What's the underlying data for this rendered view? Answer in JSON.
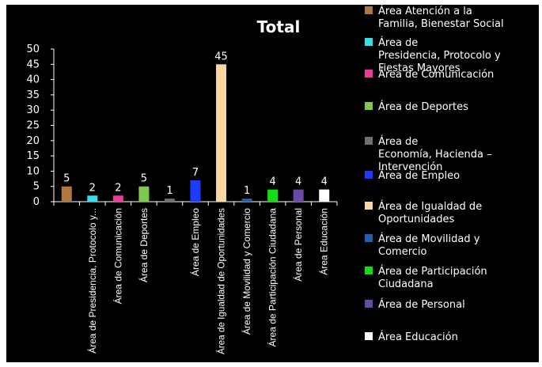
{
  "chart_data": {
    "type": "bar",
    "title": "Total",
    "xlabel": "",
    "ylabel": "",
    "ylim": [
      0,
      50
    ],
    "yticks": [
      0,
      5,
      10,
      15,
      20,
      25,
      30,
      35,
      40,
      45,
      50
    ],
    "grid": false,
    "legend_position": "right",
    "categories": [
      {
        "label": "",
        "value": 5,
        "color": "#b07840"
      },
      {
        "label": "Área de  Presidencia, Protocolo y...",
        "value": 2,
        "color": "#33e0ee"
      },
      {
        "label": "Área de Comunicación",
        "value": 2,
        "color": "#ee3a9a"
      },
      {
        "label": "Área de Deportes",
        "value": 5,
        "color": "#7ec850"
      },
      {
        "label": "",
        "value": 1,
        "color": "#707070"
      },
      {
        "label": "Área de Empleo",
        "value": 7,
        "color": "#1a3cff"
      },
      {
        "label": "Área de Igualdad de Oportunidades",
        "value": 45,
        "color": "#f8d8a0"
      },
      {
        "label": "Área de Movilidad y Comercio",
        "value": 1,
        "color": "#2060b0"
      },
      {
        "label": "Área de Participación Ciudadana",
        "value": 4,
        "color": "#10e010"
      },
      {
        "label": "Área de Personal",
        "value": 4,
        "color": "#6a4aa8"
      },
      {
        "label": "Área Educación",
        "value": 4,
        "color": "#ffffff"
      }
    ],
    "legend": [
      {
        "lines": [
          "Área Atención a la",
          "Familia, Bienestar Social"
        ],
        "color": "#b07840"
      },
      {
        "lines": [
          "Área de",
          "Presidencia, Protocolo y",
          "Fiestas Mayores"
        ],
        "color": "#33e0ee"
      },
      {
        "lines": [
          "Área de Comunicación"
        ],
        "color": "#ee3a9a"
      },
      {
        "lines": [
          "Área de Deportes"
        ],
        "color": "#7ec850"
      },
      {
        "lines": [
          "Área de",
          "Economía, Hacienda –",
          "Intervención"
        ],
        "color": "#707070"
      },
      {
        "lines": [
          "Área de Empleo"
        ],
        "color": "#1a3cff"
      },
      {
        "lines": [
          "Área de Igualdad de",
          "Oportunidades"
        ],
        "color": "#f8d8a0"
      },
      {
        "lines": [
          "Área de Movilidad y",
          "Comercio"
        ],
        "color": "#2060b0"
      },
      {
        "lines": [
          "Área de Participación",
          "Ciudadana"
        ],
        "color": "#10e010"
      },
      {
        "lines": [
          "Área de Personal"
        ],
        "color": "#6a4aa8"
      },
      {
        "lines": [
          "Área Educación"
        ],
        "color": "#ffffff"
      }
    ]
  }
}
